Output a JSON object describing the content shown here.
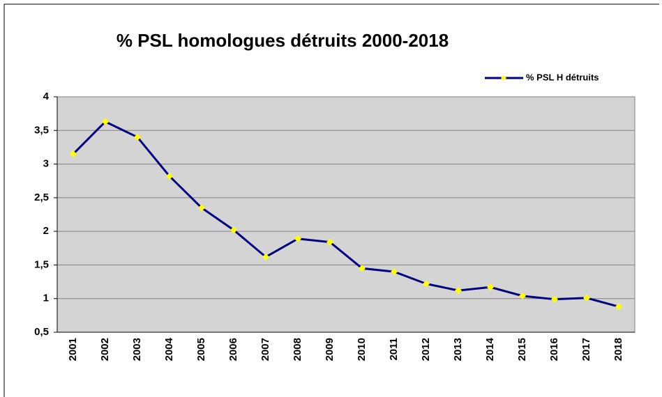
{
  "chart_data": {
    "type": "line",
    "title": "% PSL homologues détruits 2000-2018",
    "categories": [
      "2001",
      "2002",
      "2003",
      "2004",
      "2005",
      "2006",
      "2007",
      "2008",
      "2009",
      "2010",
      "2011",
      "2012",
      "2013",
      "2014",
      "2015",
      "2016",
      "2017",
      "2018"
    ],
    "series": [
      {
        "name": "% PSL H détruits",
        "color": "#000080",
        "marker_color": "#ffff00",
        "values": [
          3.15,
          3.63,
          3.4,
          2.82,
          2.35,
          2.02,
          1.62,
          1.89,
          1.84,
          1.45,
          1.4,
          1.22,
          1.12,
          1.17,
          1.04,
          0.99,
          1.01,
          0.88
        ]
      }
    ],
    "ylim": [
      0.5,
      4
    ],
    "yticks": [
      {
        "value": 0.5,
        "label": "0,5"
      },
      1,
      {
        "value": 1.5,
        "label": "1,5"
      },
      2,
      {
        "value": 2.5,
        "label": "2,5"
      },
      3,
      {
        "value": 3.5,
        "label": "3,5"
      },
      4
    ],
    "grid": true,
    "legend": "top-right",
    "plot_background": "#d4d4d4"
  }
}
